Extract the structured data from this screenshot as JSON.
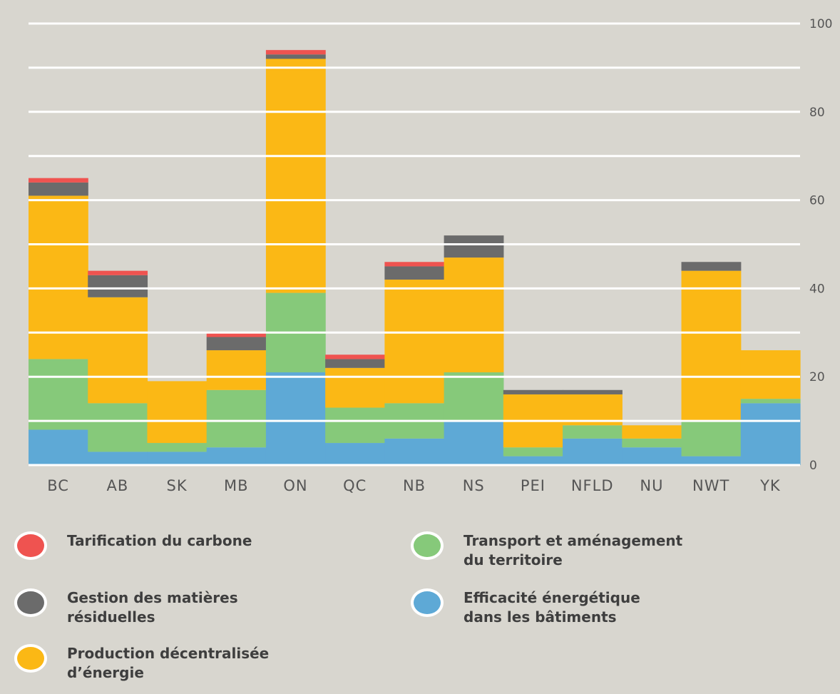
{
  "chart_data": {
    "type": "stacked-bar",
    "title": "",
    "xlabel": "",
    "ylabel": "",
    "ylim": [
      0,
      100
    ],
    "y_ticks": [
      0,
      20,
      40,
      60,
      80,
      100
    ],
    "y_tick_labels": [
      "0",
      "20",
      "40",
      "60",
      "80",
      "100"
    ],
    "grid": true,
    "y_axis_position": "right",
    "legend_position": "bottom",
    "categories": [
      "BC",
      "AB",
      "SK",
      "MB",
      "ON",
      "QC",
      "NB",
      "NS",
      "PEI",
      "NFLD",
      "NU",
      "NWT",
      "YK"
    ],
    "series": [
      {
        "key": "efficacite",
        "color": "#5ea9d6",
        "values": [
          8,
          3,
          3,
          4,
          21,
          5,
          6,
          10,
          2,
          6,
          4,
          2,
          14
        ]
      },
      {
        "key": "transport",
        "color": "#86c97a",
        "values": [
          16,
          11,
          2,
          13,
          18,
          8,
          8,
          11,
          2,
          3,
          2,
          8,
          1
        ]
      },
      {
        "key": "production",
        "color": "#fbb815",
        "values": [
          37,
          24,
          14,
          9,
          53,
          9,
          28,
          26,
          12,
          7,
          3,
          34,
          11
        ]
      },
      {
        "key": "gestion",
        "color": "#6b6b6b",
        "values": [
          3,
          5,
          0,
          3,
          1,
          2,
          3,
          5,
          1,
          1,
          0,
          2,
          0
        ]
      },
      {
        "key": "tarification",
        "color": "#ef5350",
        "values": [
          1,
          1,
          0,
          1,
          1,
          1,
          1,
          0,
          0,
          0,
          0,
          0,
          0
        ]
      }
    ]
  },
  "legend": [
    {
      "key": "tarification",
      "color": "#ef5350",
      "lines": [
        "Tarification du carbone"
      ]
    },
    {
      "key": "transport",
      "color": "#86c97a",
      "lines": [
        "Transport et aménagement",
        "du territoire"
      ]
    },
    {
      "key": "gestion",
      "color": "#6b6b6b",
      "lines": [
        "Gestion des matières",
        "résiduelles"
      ]
    },
    {
      "key": "efficacite",
      "color": "#5ea9d6",
      "lines": [
        "Efficacité énergétique",
        "dans les bâtiments"
      ]
    },
    {
      "key": "production",
      "color": "#fbb815",
      "lines": [
        "Production décentralisée",
        "d’énergie"
      ]
    }
  ]
}
